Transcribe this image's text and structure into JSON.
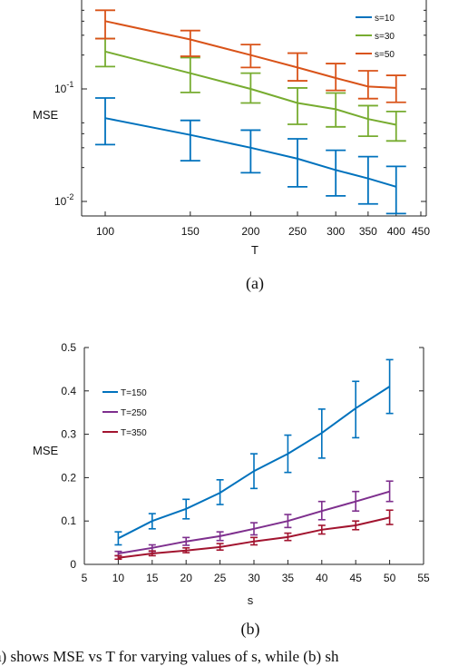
{
  "caption": "a) shows MSE vs T for varying values of s, while (b) sh",
  "chart_data": [
    {
      "type": "line",
      "panel_label": "(a)",
      "xlabel": "T",
      "ylabel": "MSE",
      "xscale": "log",
      "yscale": "log",
      "x_ticks": [
        100,
        150,
        200,
        250,
        300,
        350,
        400,
        450
      ],
      "y_ticks": [
        {
          "value": 0.1,
          "base": "10",
          "exp": "-1"
        },
        {
          "value": 0.01,
          "base": "10",
          "exp": "-2"
        }
      ],
      "legend_position": "top-right",
      "x": [
        100,
        150,
        200,
        250,
        300,
        350,
        400
      ],
      "series": [
        {
          "name": "s=10",
          "color": "#0072BD",
          "values": [
            0.055,
            0.039,
            0.03,
            0.024,
            0.019,
            0.016,
            0.0135
          ],
          "err_low": [
            0.032,
            0.023,
            0.018,
            0.0135,
            0.0112,
            0.0095,
            0.0078
          ],
          "err_high": [
            0.083,
            0.0525,
            0.043,
            0.036,
            0.0285,
            0.025,
            0.0205
          ]
        },
        {
          "name": "s=30",
          "color": "#77AC30",
          "values": [
            0.215,
            0.138,
            0.1,
            0.075,
            0.066,
            0.054,
            0.048
          ],
          "err_low": [
            0.158,
            0.093,
            0.075,
            0.0485,
            0.046,
            0.038,
            0.0345
          ],
          "err_high": [
            0.28,
            0.19,
            0.138,
            0.102,
            0.092,
            0.071,
            0.063
          ]
        },
        {
          "name": "s=50",
          "color": "#D95319",
          "values": [
            0.4,
            0.275,
            0.2,
            0.155,
            0.125,
            0.105,
            0.102
          ],
          "err_low": [
            0.28,
            0.195,
            0.155,
            0.118,
            0.097,
            0.082,
            0.076
          ],
          "err_high": [
            0.5,
            0.33,
            0.248,
            0.208,
            0.168,
            0.145,
            0.132
          ]
        }
      ]
    },
    {
      "type": "line",
      "panel_label": "(b)",
      "xlabel": "s",
      "ylabel": "MSE",
      "xlim": [
        5,
        55
      ],
      "ylim": [
        0,
        0.5
      ],
      "x_ticks": [
        5,
        10,
        15,
        20,
        25,
        30,
        35,
        40,
        45,
        50,
        55
      ],
      "y_ticks": [
        0,
        0.1,
        0.2,
        0.3,
        0.4,
        0.5
      ],
      "legend_position": "top-left",
      "x": [
        10,
        15,
        20,
        25,
        30,
        35,
        40,
        45,
        50
      ],
      "series": [
        {
          "name": "T=150",
          "color": "#0072BD",
          "values": [
            0.06,
            0.1,
            0.128,
            0.165,
            0.215,
            0.255,
            0.303,
            0.36,
            0.41
          ],
          "err_low": [
            0.045,
            0.082,
            0.105,
            0.138,
            0.175,
            0.212,
            0.245,
            0.292,
            0.348
          ],
          "err_high": [
            0.075,
            0.117,
            0.15,
            0.195,
            0.255,
            0.298,
            0.358,
            0.422,
            0.472
          ]
        },
        {
          "name": "T=250",
          "color": "#7E2F8E",
          "values": [
            0.025,
            0.038,
            0.053,
            0.065,
            0.082,
            0.1,
            0.123,
            0.145,
            0.168
          ],
          "err_low": [
            0.02,
            0.03,
            0.044,
            0.055,
            0.068,
            0.085,
            0.103,
            0.123,
            0.145
          ],
          "err_high": [
            0.03,
            0.045,
            0.062,
            0.075,
            0.096,
            0.115,
            0.145,
            0.168,
            0.192
          ]
        },
        {
          "name": "T=350",
          "color": "#A2142F",
          "values": [
            0.015,
            0.025,
            0.032,
            0.04,
            0.053,
            0.063,
            0.08,
            0.09,
            0.108
          ],
          "err_low": [
            0.012,
            0.02,
            0.027,
            0.033,
            0.045,
            0.055,
            0.07,
            0.08,
            0.092
          ],
          "err_high": [
            0.02,
            0.031,
            0.038,
            0.048,
            0.062,
            0.072,
            0.09,
            0.1,
            0.125
          ]
        }
      ]
    }
  ]
}
